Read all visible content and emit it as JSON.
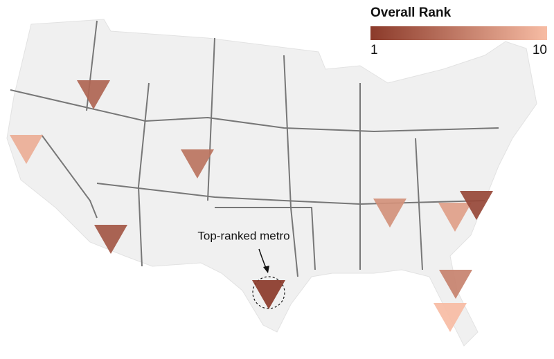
{
  "legend": {
    "title": "Overall Rank",
    "min": 1,
    "max": 10
  },
  "annotation": {
    "text": "Top-ranked metro"
  },
  "markers": [
    {
      "rank": 4
    },
    {
      "rank": 9
    },
    {
      "rank": 5
    },
    {
      "rank": 3
    },
    {
      "rank": 1
    },
    {
      "rank": 7
    },
    {
      "rank": 8
    },
    {
      "rank": 2
    },
    {
      "rank": 6
    },
    {
      "rank": 10
    }
  ]
}
